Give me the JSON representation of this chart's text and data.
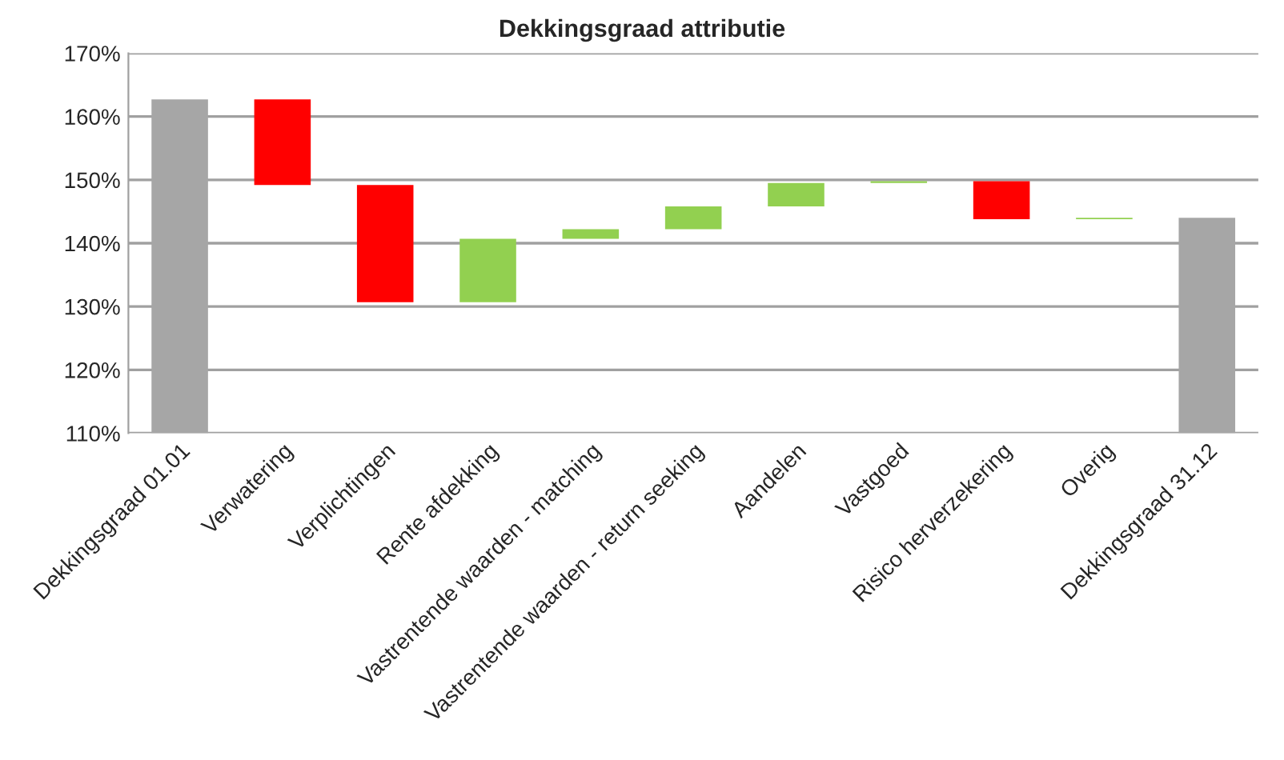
{
  "chart_data": {
    "type": "bar",
    "title": "Dekkingsgraad attributie",
    "categories": [
      "Dekkingsgraad 01.01",
      "Verwatering",
      "Verplichtingen",
      "Rente afdekking",
      "Vastrentende waarden - matching",
      "Vastrentende waarden - return seeking",
      "Aandelen",
      "Vastgoed",
      "Risico herverzekering",
      "Overig",
      "Dekkingsgraad 31.12"
    ],
    "base": [
      110,
      162.7,
      149.2,
      130.7,
      140.7,
      142.2,
      145.8,
      149.5,
      149.8,
      143.8,
      110
    ],
    "values": [
      52.7,
      -13.5,
      -18.5,
      10.0,
      1.5,
      3.6,
      3.7,
      0.3,
      -6.0,
      0.2,
      34.0
    ],
    "colors": [
      "#a6a6a6",
      "#ff0000",
      "#ff0000",
      "#92d050",
      "#92d050",
      "#92d050",
      "#92d050",
      "#92d050",
      "#ff0000",
      "#92d050",
      "#a6a6a6"
    ],
    "ylim": [
      110,
      170
    ],
    "yticks": [
      {
        "value": 110,
        "label": "110%"
      },
      {
        "value": 120,
        "label": "120%"
      },
      {
        "value": 130,
        "label": "130%"
      },
      {
        "value": 140,
        "label": "140%"
      },
      {
        "value": 150,
        "label": "150%"
      },
      {
        "value": 160,
        "label": "160%"
      },
      {
        "value": 170,
        "label": "170%"
      }
    ],
    "grid": "y",
    "legend": false
  }
}
